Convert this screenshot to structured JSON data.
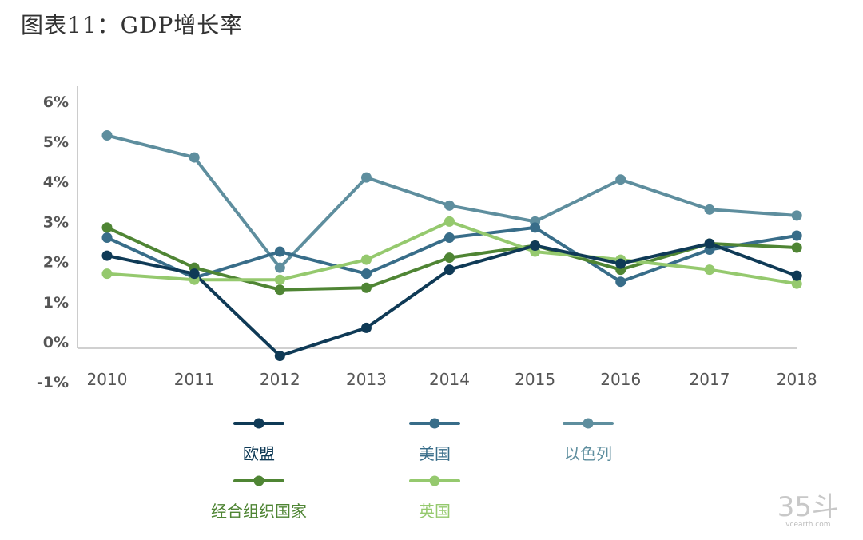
{
  "page": {
    "title": "图表11：GDP增长率"
  },
  "chart_data": {
    "type": "line",
    "title": "图表11：GDP增长率",
    "xlabel": "",
    "ylabel": "",
    "categories": [
      "2010",
      "2011",
      "2012",
      "2013",
      "2014",
      "2015",
      "2016",
      "2017",
      "2018"
    ],
    "x": [
      0,
      1.05,
      2.08,
      3.12,
      4.12,
      5.15,
      6.18,
      7.25,
      8.3
    ],
    "yticks": [
      6,
      5,
      4,
      3,
      2,
      1,
      0,
      -1
    ],
    "ytick_labels": [
      "6%",
      "5%",
      "4%",
      "3%",
      "2%",
      "1%",
      "0%",
      "-1%"
    ],
    "ylim": [
      -1,
      6.5
    ],
    "grid": false,
    "legend_position": "bottom",
    "series": [
      {
        "name": "欧盟",
        "color": "#0f3a56",
        "values": [
          2.15,
          1.7,
          -0.35,
          0.35,
          1.8,
          2.4,
          1.95,
          2.45,
          1.65
        ]
      },
      {
        "name": "美国",
        "color": "#386d89",
        "values": [
          2.6,
          1.6,
          2.25,
          1.7,
          2.6,
          2.85,
          1.5,
          2.3,
          2.65
        ]
      },
      {
        "name": "以色列",
        "color": "#5e8e9e",
        "values": [
          5.15,
          4.6,
          1.85,
          4.1,
          3.4,
          3.0,
          4.05,
          3.3,
          3.15
        ]
      },
      {
        "name": "经合组织国家",
        "color": "#4f8534",
        "values": [
          2.85,
          1.85,
          1.3,
          1.35,
          2.1,
          2.4,
          1.8,
          2.45,
          2.35
        ]
      },
      {
        "name": "英国",
        "color": "#95c96e",
        "values": [
          1.7,
          1.55,
          1.55,
          2.05,
          3.0,
          2.25,
          2.05,
          1.8,
          1.45
        ]
      }
    ]
  },
  "watermark": {
    "main": "35斗",
    "sub": "vcearth.com"
  }
}
